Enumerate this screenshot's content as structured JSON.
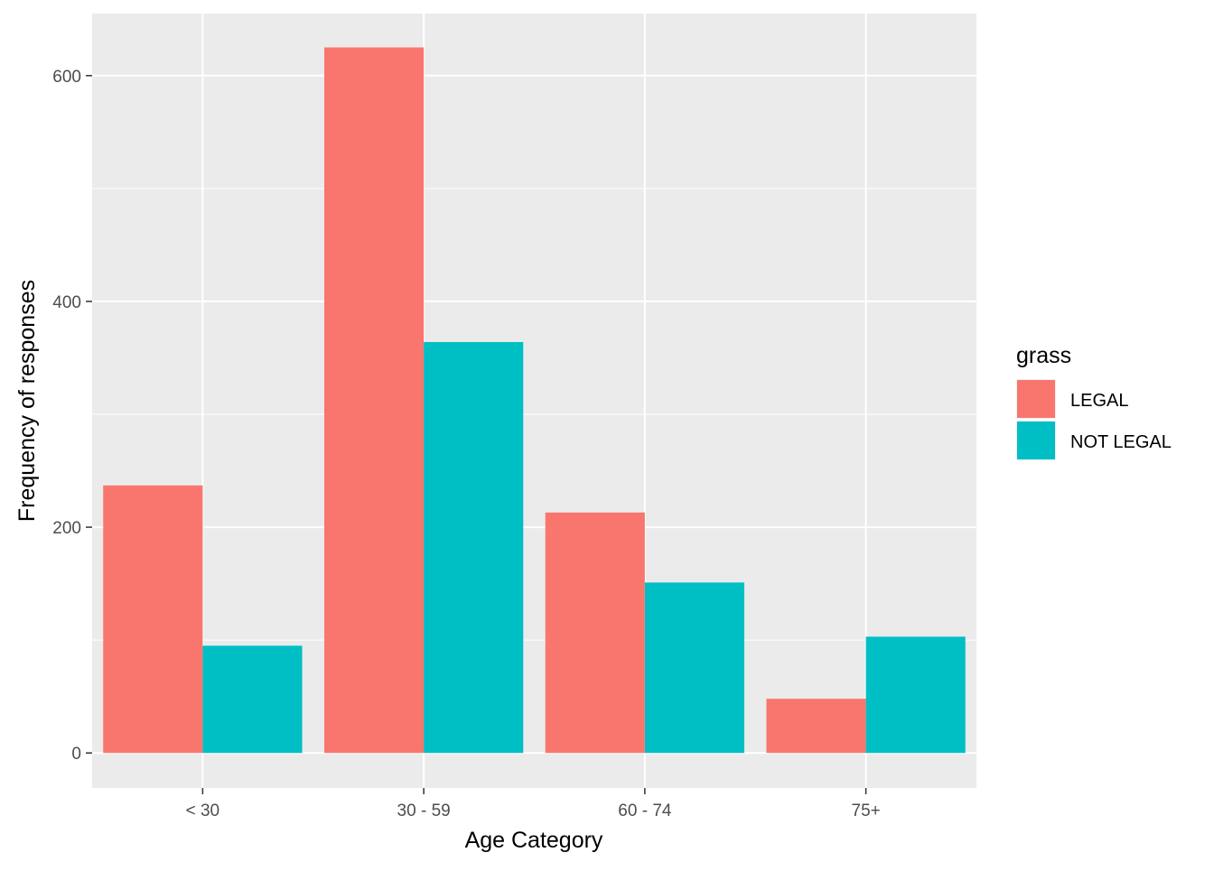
{
  "chart_data": {
    "type": "bar",
    "title": "",
    "xlabel": "Age Category",
    "ylabel": "Frequency of responses",
    "categories": [
      "< 30",
      "30 - 59",
      "60 - 74",
      "75+"
    ],
    "series": [
      {
        "name": "LEGAL",
        "color": "#F8766D",
        "values": [
          237,
          625,
          213,
          48
        ]
      },
      {
        "name": "NOT LEGAL",
        "color": "#00BFC4",
        "values": [
          95,
          364,
          151,
          103
        ]
      }
    ],
    "ylim": [
      -31,
      655
    ],
    "yticks": [
      0,
      200,
      400,
      600
    ],
    "yticks_minor": [
      100,
      300,
      500
    ],
    "grid": true,
    "legend": {
      "title": "grass",
      "placement": "right"
    },
    "colors": {
      "panel": "#EBEBEB",
      "grid": "#FFFFFF",
      "tick_text": "#4D4D4D",
      "tick_mark": "#333333"
    }
  }
}
